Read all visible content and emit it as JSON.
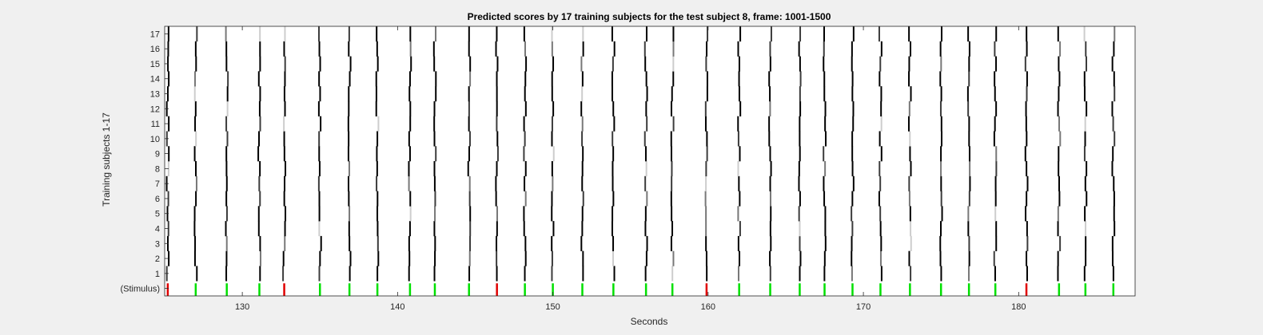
{
  "chart_data": {
    "type": "heatmap",
    "title": "Predicted scores by 17 training subjects for the test subject 8, frame: 1001-1500",
    "xlabel": "Seconds",
    "ylabel": "Training subjects 1-17",
    "xlim": [
      125,
      187.5
    ],
    "xticks": [
      130,
      140,
      150,
      160,
      170,
      180
    ],
    "ytick_labels": [
      "(Stimulus)",
      "1",
      "2",
      "3",
      "4",
      "5",
      "6",
      "7",
      "8",
      "9",
      "10",
      "11",
      "12",
      "13",
      "14",
      "15",
      "16",
      "17"
    ],
    "grid": false,
    "legend": "none",
    "colors": {
      "stimulus_target": "#00e000",
      "stimulus_nontarget": "#e00000",
      "high_score": "#000000",
      "low_score": "#ffffff"
    },
    "stimulus_events": [
      {
        "t": 125.2,
        "type": "nontarget"
      },
      {
        "t": 127.0,
        "type": "target"
      },
      {
        "t": 129.0,
        "type": "target"
      },
      {
        "t": 131.1,
        "type": "target"
      },
      {
        "t": 132.7,
        "type": "nontarget"
      },
      {
        "t": 135.0,
        "type": "target"
      },
      {
        "t": 136.9,
        "type": "target"
      },
      {
        "t": 138.7,
        "type": "target"
      },
      {
        "t": 140.8,
        "type": "target"
      },
      {
        "t": 142.4,
        "type": "target"
      },
      {
        "t": 144.6,
        "type": "target"
      },
      {
        "t": 146.4,
        "type": "nontarget"
      },
      {
        "t": 148.2,
        "type": "target"
      },
      {
        "t": 150.0,
        "type": "target"
      },
      {
        "t": 151.9,
        "type": "target"
      },
      {
        "t": 153.9,
        "type": "target"
      },
      {
        "t": 156.0,
        "type": "target"
      },
      {
        "t": 157.7,
        "type": "target"
      },
      {
        "t": 159.9,
        "type": "nontarget"
      },
      {
        "t": 162.0,
        "type": "target"
      },
      {
        "t": 164.0,
        "type": "target"
      },
      {
        "t": 165.9,
        "type": "target"
      },
      {
        "t": 167.5,
        "type": "target"
      },
      {
        "t": 169.3,
        "type": "target"
      },
      {
        "t": 171.1,
        "type": "target"
      },
      {
        "t": 173.0,
        "type": "target"
      },
      {
        "t": 175.0,
        "type": "target"
      },
      {
        "t": 176.8,
        "type": "target"
      },
      {
        "t": 178.5,
        "type": "target"
      },
      {
        "t": 180.5,
        "type": "nontarget"
      },
      {
        "t": 182.6,
        "type": "target"
      },
      {
        "t": 184.3,
        "type": "target"
      },
      {
        "t": 186.1,
        "type": "target"
      }
    ]
  }
}
